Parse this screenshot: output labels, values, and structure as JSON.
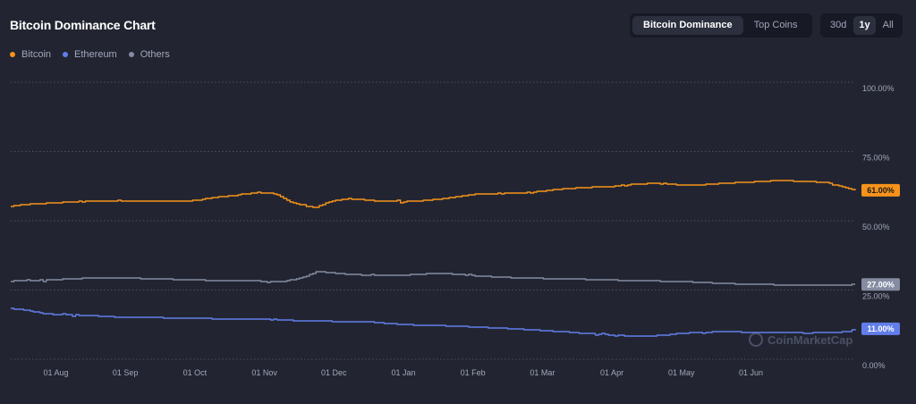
{
  "header": {
    "title": "Bitcoin Dominance Chart"
  },
  "view_toggle": {
    "options": [
      "Bitcoin Dominance",
      "Top Coins"
    ],
    "selected": "Bitcoin Dominance"
  },
  "range_toggle": {
    "options": [
      "30d",
      "1y",
      "All"
    ],
    "selected": "1y"
  },
  "watermark": "CoinMarketCap",
  "chart_data": {
    "type": "line",
    "title": "Bitcoin Dominance Chart",
    "xlabel": "",
    "ylabel": "",
    "ylim": [
      0,
      100
    ],
    "y_ticks": [
      0,
      25,
      50,
      75,
      100
    ],
    "y_tick_labels": [
      "0.00%",
      "25.00%",
      "50.00%",
      "75.00%",
      "100.00%"
    ],
    "x_tick_labels": [
      "01 Aug",
      "01 Sep",
      "01 Oct",
      "01 Nov",
      "01 Dec",
      "01 Jan",
      "01 Feb",
      "01 Mar",
      "01 Apr",
      "01 May",
      "01 Jun"
    ],
    "x_tick_month_index": [
      1,
      2,
      3,
      4,
      5,
      6,
      7,
      8,
      9,
      10,
      11
    ],
    "x_range_months": [
      0.35,
      12.5
    ],
    "grid": true,
    "legend_position": "top-left",
    "series": [
      {
        "name": "Bitcoin",
        "color": "#f7931a",
        "last_label": "61.00%",
        "months": [
          0.35,
          0.6,
          0.9,
          1.2,
          1.5,
          2.0,
          2.5,
          3.0,
          3.3,
          3.6,
          3.9,
          4.15,
          4.35,
          4.55,
          4.75,
          4.9,
          5.2,
          5.6,
          6.0,
          6.3,
          6.6,
          7.0,
          7.4,
          7.8,
          8.2,
          8.6,
          9.0,
          9.3,
          9.7,
          10.0,
          10.3,
          10.6,
          11.0,
          11.4,
          11.8,
          12.1,
          12.3,
          12.5
        ],
        "values": [
          55.2,
          56.0,
          56.4,
          56.8,
          57.0,
          57.1,
          57.0,
          57.3,
          58.5,
          59.2,
          60.2,
          59.8,
          57.0,
          55.5,
          54.8,
          56.8,
          58.0,
          57.2,
          56.9,
          57.3,
          58.1,
          59.5,
          59.8,
          60.2,
          61.3,
          62.0,
          62.4,
          63.2,
          63.5,
          62.8,
          63.0,
          63.6,
          64.0,
          64.5,
          64.2,
          63.8,
          62.5,
          61.0
        ]
      },
      {
        "name": "Ethereum",
        "color": "#627eea",
        "last_label": "11.00%",
        "months": [
          0.35,
          0.55,
          0.8,
          1.0,
          1.3,
          1.6,
          2.0,
          2.5,
          3.0,
          3.5,
          4.0,
          4.5,
          5.0,
          5.5,
          6.0,
          6.5,
          7.0,
          7.5,
          8.0,
          8.5,
          9.0,
          9.4,
          9.7,
          10.0,
          10.3,
          10.6,
          11.0,
          11.4,
          11.8,
          12.1,
          12.4,
          12.5
        ],
        "values": [
          18.3,
          17.8,
          16.6,
          16.2,
          16.0,
          15.6,
          15.1,
          15.0,
          14.8,
          14.5,
          14.6,
          13.9,
          13.7,
          13.5,
          12.5,
          12.2,
          11.7,
          11.1,
          10.4,
          9.6,
          8.7,
          8.3,
          8.6,
          9.4,
          9.8,
          9.9,
          9.8,
          9.6,
          9.5,
          9.6,
          10.0,
          11.0
        ]
      },
      {
        "name": "Others",
        "color": "#858ca2",
        "last_label": "27.00%",
        "months": [
          0.35,
          0.8,
          1.2,
          1.5,
          2.0,
          2.5,
          3.0,
          3.5,
          4.0,
          4.3,
          4.6,
          4.75,
          4.9,
          5.2,
          5.5,
          6.0,
          6.3,
          6.6,
          7.0,
          7.4,
          7.8,
          8.2,
          8.6,
          9.0,
          9.5,
          10.0,
          10.4,
          10.8,
          11.2,
          11.6,
          12.0,
          12.3,
          12.5
        ],
        "values": [
          28.2,
          28.6,
          29.0,
          29.4,
          29.3,
          29.0,
          28.6,
          28.4,
          28.2,
          28.1,
          30.1,
          31.7,
          31.3,
          30.7,
          30.3,
          30.4,
          30.8,
          31.0,
          30.2,
          29.6,
          29.3,
          29.1,
          28.9,
          28.6,
          28.3,
          28.1,
          27.6,
          27.2,
          27.0,
          26.8,
          26.7,
          26.8,
          27.0
        ]
      }
    ]
  }
}
